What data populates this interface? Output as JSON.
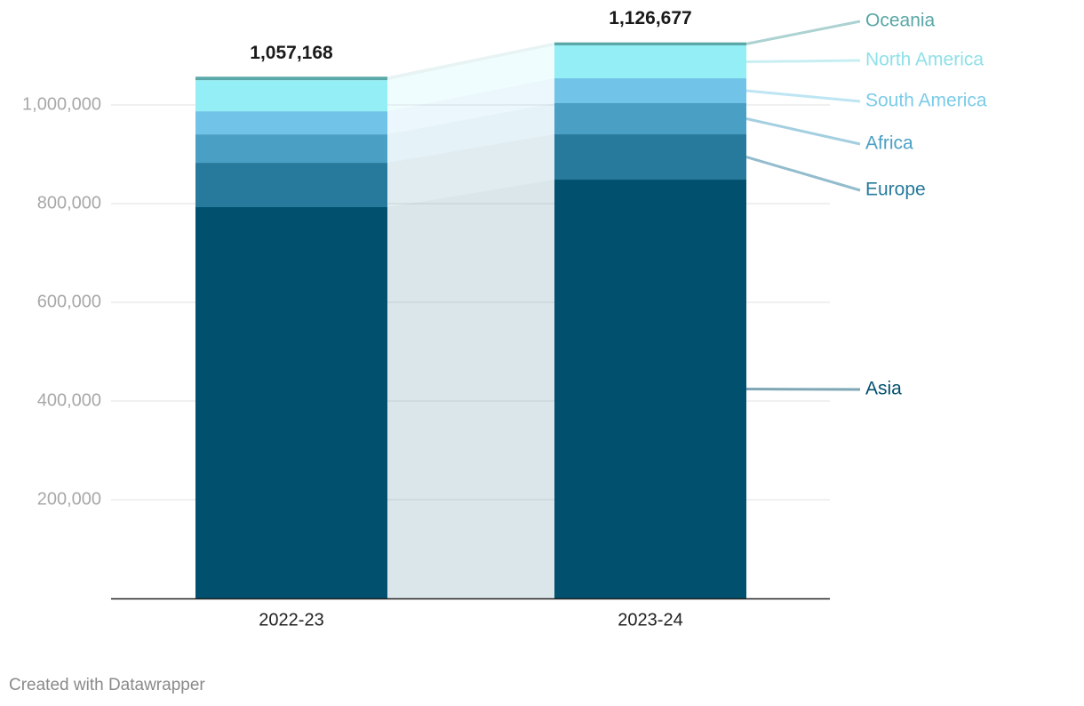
{
  "chart_data": {
    "type": "stacked-bar",
    "categories": [
      "2022-23",
      "2023-24"
    ],
    "series": [
      {
        "name": "Asia",
        "color": "#00506e",
        "values": [
          792800,
          848600
        ]
      },
      {
        "name": "Europe",
        "color": "#277a9c",
        "values": [
          90000,
          91900
        ]
      },
      {
        "name": "Africa",
        "color": "#4aa0c4",
        "values": [
          57600,
          63100
        ]
      },
      {
        "name": "South America",
        "color": "#71c4e8",
        "values": [
          46800,
          50400
        ]
      },
      {
        "name": "North America",
        "color": "#93eef5",
        "values": [
          63000,
          66700
        ]
      },
      {
        "name": "Oceania",
        "color": "#5aa8a8",
        "values": [
          6968,
          5977
        ]
      }
    ],
    "totals": [
      1057168,
      1126677
    ],
    "total_labels": [
      "1,057,168",
      "1,126,677"
    ],
    "ylim": [
      0,
      1200000
    ],
    "yticks": [
      {
        "value": 200000,
        "label": "200,000"
      },
      {
        "value": 400000,
        "label": "400,000"
      },
      {
        "value": 600000,
        "label": "600,000"
      },
      {
        "value": 800000,
        "label": "800,000"
      },
      {
        "value": 1000000,
        "label": "1,000,000"
      }
    ],
    "grid": true,
    "credit": "Created with Datawrapper"
  }
}
